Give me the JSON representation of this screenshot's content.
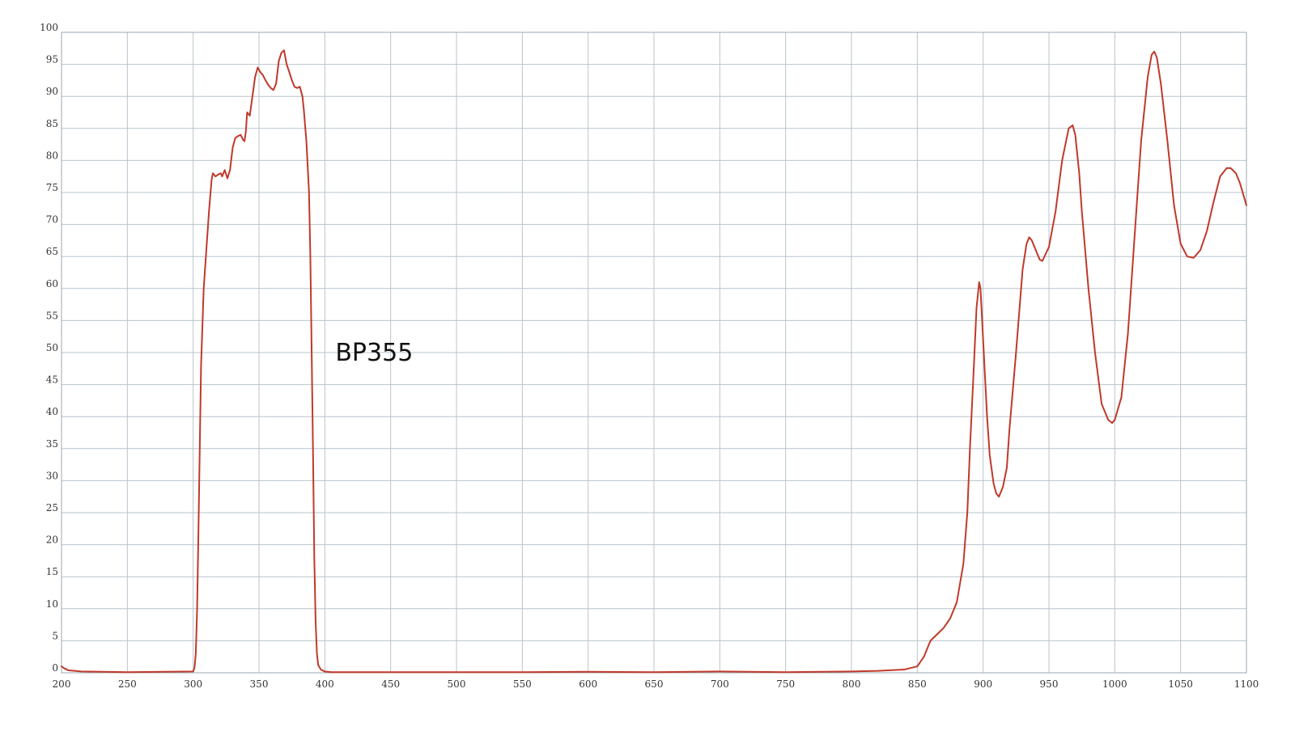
{
  "chart_data": {
    "type": "line",
    "title": "",
    "xlabel": "",
    "ylabel": "",
    "xlim": [
      200,
      1100
    ],
    "ylim": [
      0,
      100
    ],
    "x_ticks": [
      200,
      250,
      300,
      350,
      400,
      450,
      500,
      550,
      600,
      650,
      700,
      750,
      800,
      850,
      900,
      950,
      1000,
      1050,
      1100
    ],
    "y_ticks": [
      0,
      5,
      10,
      15,
      20,
      25,
      30,
      35,
      40,
      45,
      50,
      55,
      60,
      65,
      70,
      75,
      80,
      85,
      90,
      95,
      100
    ],
    "grid": true,
    "annotations": [
      {
        "text": "BP355",
        "x": 408,
        "y": 50
      }
    ],
    "series": [
      {
        "color": "#c0392b",
        "x": [
          200,
          202,
          205,
          215,
          250,
          300,
          301,
          302,
          303,
          304,
          305,
          306,
          308,
          310,
          312,
          314,
          315,
          317,
          319,
          321,
          322,
          324,
          326,
          328,
          330,
          332,
          334,
          336,
          338,
          339,
          340,
          341,
          343,
          345,
          347,
          349,
          351,
          353,
          355,
          357,
          359,
          361,
          363,
          365,
          367,
          369,
          371,
          373,
          375,
          377,
          379,
          381,
          383,
          384,
          386,
          388,
          389,
          390,
          391,
          392,
          393,
          394,
          395,
          397,
          400,
          405,
          450,
          500,
          550,
          600,
          650,
          700,
          750,
          800,
          820,
          840,
          850,
          855,
          860,
          865,
          870,
          875,
          880,
          885,
          888,
          890,
          893,
          895,
          897,
          898,
          900,
          903,
          905,
          908,
          910,
          912,
          915,
          918,
          920,
          925,
          930,
          933,
          935,
          937,
          940,
          943,
          945,
          950,
          955,
          960,
          965,
          968,
          970,
          973,
          975,
          980,
          985,
          990,
          995,
          998,
          1000,
          1005,
          1010,
          1015,
          1020,
          1025,
          1028,
          1030,
          1032,
          1035,
          1040,
          1045,
          1050,
          1055,
          1060,
          1065,
          1070,
          1075,
          1080,
          1085,
          1088,
          1092,
          1095,
          1100
        ],
        "y": [
          1.0,
          0.7,
          0.4,
          0.2,
          0.1,
          0.2,
          0.8,
          3.0,
          10.0,
          22.0,
          35.0,
          48.0,
          60.0,
          66.0,
          72.0,
          77.0,
          78.0,
          77.5,
          77.8,
          78.0,
          77.5,
          78.5,
          77.2,
          78.5,
          82.0,
          83.5,
          83.8,
          84.0,
          83.2,
          83.0,
          84.5,
          87.5,
          87.0,
          90.0,
          93.0,
          94.5,
          93.8,
          93.3,
          92.5,
          91.8,
          91.3,
          91.0,
          92.0,
          95.5,
          96.8,
          97.2,
          95.0,
          93.8,
          92.5,
          91.5,
          91.3,
          91.5,
          90.0,
          88.0,
          83.0,
          75.0,
          65.0,
          50.0,
          35.0,
          18.0,
          8.0,
          3.0,
          1.2,
          0.5,
          0.2,
          0.1,
          0.1,
          0.1,
          0.1,
          0.15,
          0.1,
          0.2,
          0.1,
          0.2,
          0.3,
          0.5,
          1.0,
          2.5,
          5.0,
          6.0,
          7.0,
          8.5,
          11.0,
          17.0,
          25.0,
          35.0,
          48.0,
          57.0,
          61.0,
          60.0,
          52.0,
          40.0,
          34.0,
          29.5,
          28.0,
          27.5,
          29.0,
          32.0,
          38.0,
          50.0,
          63.0,
          67.0,
          68.0,
          67.5,
          66.0,
          64.5,
          64.3,
          66.5,
          72.0,
          80.0,
          85.0,
          85.5,
          84.0,
          78.0,
          72.0,
          60.0,
          50.0,
          42.0,
          39.5,
          39.0,
          39.5,
          43.0,
          53.0,
          68.0,
          83.0,
          93.0,
          96.5,
          97.0,
          96.0,
          92.0,
          83.0,
          73.0,
          67.0,
          65.0,
          64.8,
          66.0,
          69.0,
          73.5,
          77.5,
          78.8,
          78.8,
          78.0,
          76.5,
          73.0
        ]
      }
    ]
  }
}
